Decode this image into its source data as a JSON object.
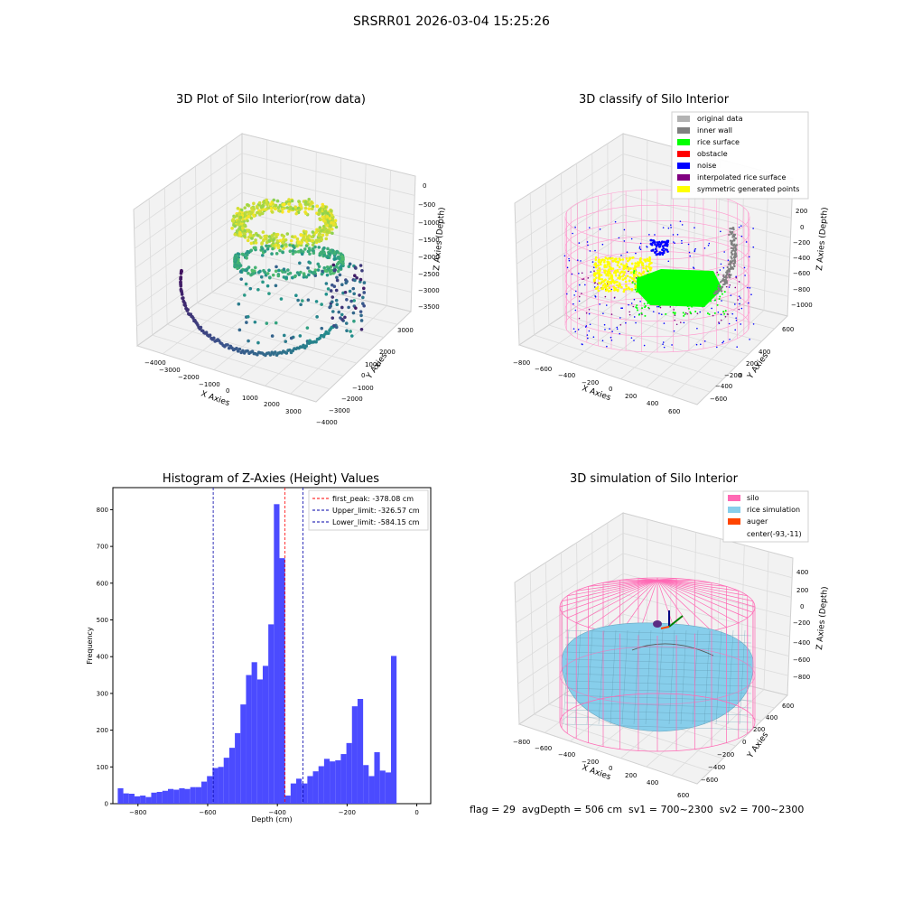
{
  "suptitle": "SRSRR01 2026-03-04 15:25:26",
  "footer": "flag = 29  avgDepth = 506 cm  sv1 = 700~2300  sv2 = 700~2300",
  "colors": {
    "hist_bar": "#4b4bff",
    "peak_line": "#ff0000",
    "limit_line": "#0000aa",
    "original_data": "#b3b3b3",
    "inner_wall": "#808080",
    "rice_surface": "#00ff00",
    "obstacle": "#ff0000",
    "noise": "#0000ff",
    "interpolated_rice_surface": "#800080",
    "symmetric_generated_points": "#ffff00",
    "silo": "#ff69b4",
    "rice_simulation": "#87ceeb",
    "auger": "#ff4500"
  },
  "chart_data": [
    {
      "type": "scatter3d",
      "title": "3D Plot of Silo Interior(row data)",
      "xlabel": "X Axies",
      "ylabel": "Y Axies",
      "zlabel": "Z Axies (Depth)",
      "xticks": [
        "−4000",
        "−3000",
        "−2000",
        "−1000",
        "0",
        "1000",
        "2000",
        "3000"
      ],
      "yticks": [
        "3000",
        "2000",
        "1000",
        "0",
        "−1000",
        "−2000",
        "−3000",
        "−4000"
      ],
      "zticks": [
        "0",
        "−500",
        "−1000",
        "−1500",
        "−2000",
        "−2500",
        "−3000",
        "−3500"
      ],
      "colormap": "viridis"
    },
    {
      "type": "scatter3d",
      "title": "3D classify of Silo Interior",
      "xlabel": "X Axies",
      "ylabel": "Y Axies",
      "zlabel": "Z Axies (Depth)",
      "xticks": [
        "−800",
        "−600",
        "−400",
        "−200",
        "0",
        "200",
        "400",
        "600"
      ],
      "yticks": [
        "600",
        "400",
        "200",
        "0",
        "−200",
        "−400",
        "−600"
      ],
      "zticks": [
        "200",
        "0",
        "−200",
        "−400",
        "−600",
        "−800",
        "−1000"
      ],
      "legend": [
        "original data",
        "inner wall",
        "rice surface",
        "obstacle",
        "noise",
        "interpolated rice surface",
        "symmetric generated points"
      ],
      "legend_position": "top-right"
    },
    {
      "type": "bar",
      "title": "Histogram of Z-Axies (Height) Values",
      "xlabel": "Depth (cm)",
      "ylabel": "Frequency",
      "xlim": [
        -872,
        40
      ],
      "ylim": [
        0,
        860
      ],
      "xticks": [
        -800,
        -600,
        -400,
        -200,
        0
      ],
      "xtick_labels": [
        "−800",
        "−600",
        "−400",
        "−200",
        "0"
      ],
      "yticks": [
        0,
        100,
        200,
        300,
        400,
        500,
        600,
        700,
        800
      ],
      "bin_start": -858,
      "bin_width": 16,
      "values": [
        42,
        28,
        27,
        20,
        22,
        18,
        30,
        32,
        35,
        40,
        38,
        42,
        40,
        45,
        45,
        60,
        75,
        97,
        100,
        125,
        152,
        192,
        270,
        350,
        385,
        338,
        375,
        488,
        815,
        668,
        22,
        55,
        68,
        55,
        75,
        88,
        102,
        122,
        115,
        118,
        135,
        165,
        265,
        285,
        105,
        75,
        140,
        90,
        85,
        402
      ],
      "vlines": [
        {
          "label": "first_peak: -378.08 cm",
          "x": -378.08,
          "color": "red"
        },
        {
          "label": "Upper_limit: -326.57 cm",
          "x": -326.57,
          "color": "blue"
        },
        {
          "label": "Lower_limit: -584.15 cm",
          "x": -584.15,
          "color": "blue"
        }
      ],
      "legend_position": "top-right"
    },
    {
      "type": "surface3d",
      "title": "3D simulation of Silo Interior",
      "xlabel": "X Axies",
      "ylabel": "Y Axies",
      "zlabel": "Z Axies (Depth)",
      "xticks": [
        "−800",
        "−600",
        "−400",
        "−200",
        "0",
        "200",
        "400",
        "600"
      ],
      "yticks": [
        "600",
        "400",
        "200",
        "0",
        "−200",
        "−400",
        "−600"
      ],
      "zticks": [
        "400",
        "200",
        "0",
        "−200",
        "−400",
        "−600",
        "−800"
      ],
      "legend": [
        "silo",
        "rice simulation",
        "auger",
        "center(-93,-11)"
      ],
      "legend_position": "top-right"
    }
  ]
}
